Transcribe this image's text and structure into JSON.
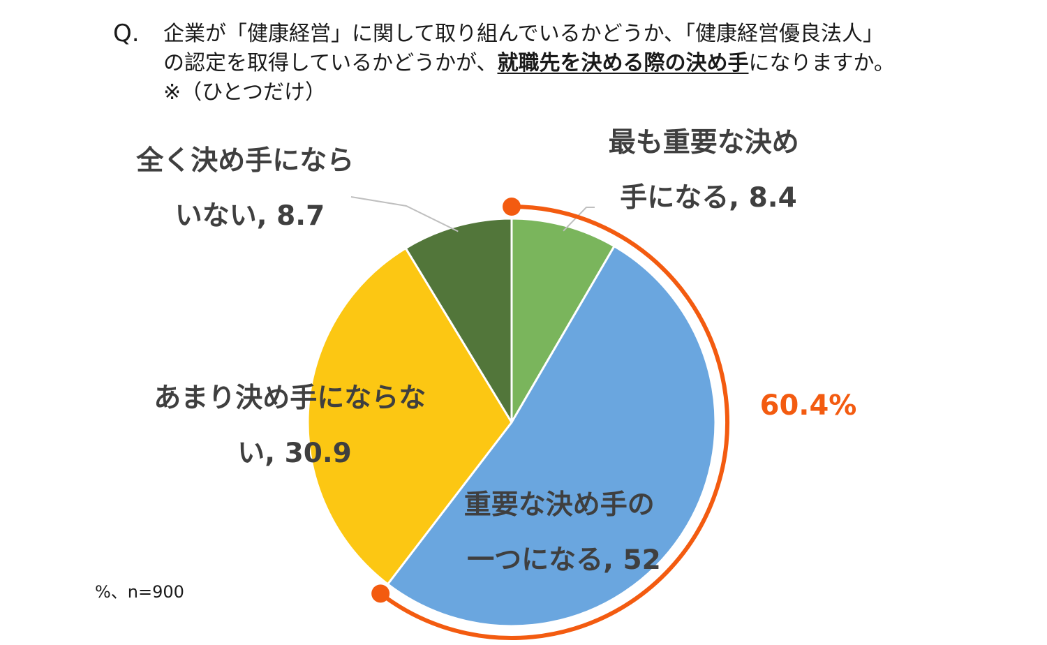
{
  "question": {
    "marker": "Q.",
    "line1": "企業が「健康経営」に関して取り組んでいるかどうか、「健康経営優良法人」",
    "line2_pre": "の認定を取得しているかどうかが、",
    "line2_emph": "就職先を決める際の決め手",
    "line2_post": "になりますか。",
    "line3": "※（ひとつだけ）"
  },
  "footnote": "%、n=900",
  "chart_data": {
    "type": "pie",
    "unit": "%",
    "n": 900,
    "start": "12 o'clock, clockwise",
    "slices": [
      {
        "key": "most",
        "label_lines": [
          "最も重要な決め",
          "手になる, 8.4"
        ],
        "value": 8.4,
        "color": "#7ab55c"
      },
      {
        "key": "one",
        "label_lines": [
          "重要な決め手の",
          "一つになる, 52"
        ],
        "value": 52,
        "color": "#6aa6df"
      },
      {
        "key": "not_much",
        "label_lines": [
          "あまり決め手にならな",
          "い, 30.9"
        ],
        "value": 30.9,
        "color": "#fcc713"
      },
      {
        "key": "not_at_all",
        "label_lines": [
          "全く決め手になら",
          "いない, 8.7"
        ],
        "value": 8.7,
        "color": "#52763a"
      }
    ],
    "highlight": {
      "label": "60.4%",
      "covers": [
        "most",
        "one"
      ],
      "color": "#f35b10"
    }
  }
}
